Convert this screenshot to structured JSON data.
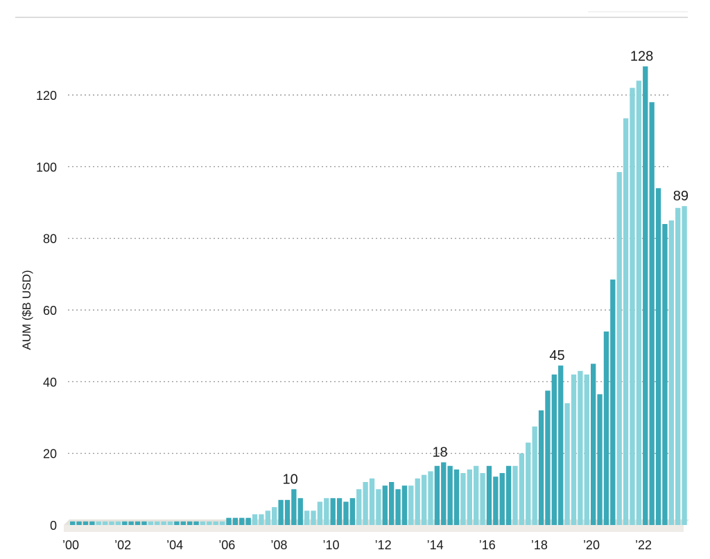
{
  "chart_data": {
    "type": "bar",
    "ylabel": "AUM ($B USD)",
    "ylim": [
      0,
      130
    ],
    "yticks": [
      0,
      20,
      40,
      60,
      80,
      100,
      120
    ],
    "grid": "horizontal dotted",
    "xlim": [
      2000,
      2023.25
    ],
    "xticks": [
      {
        "x": 2000,
        "label": "’00"
      },
      {
        "x": 2002,
        "label": "’02"
      },
      {
        "x": 2004,
        "label": "’04"
      },
      {
        "x": 2006,
        "label": "’06"
      },
      {
        "x": 2008,
        "label": "’08"
      },
      {
        "x": 2010,
        "label": "’10"
      },
      {
        "x": 2012,
        "label": "’12"
      },
      {
        "x": 2014,
        "label": "’14"
      },
      {
        "x": 2016,
        "label": "’16"
      },
      {
        "x": 2018,
        "label": "’18"
      },
      {
        "x": 2020,
        "label": "’20"
      },
      {
        "x": 2022,
        "label": "’22"
      }
    ],
    "colors": {
      "dark": "#3aa9b8",
      "light": "#8ad4dc",
      "grid": "#888888",
      "floor": "#e6e2dc"
    },
    "series": [
      {
        "x": 2000.0,
        "values": [
          1,
          1,
          1,
          1
        ]
      },
      {
        "x": 2001.0,
        "values": [
          1,
          1,
          1,
          1
        ]
      },
      {
        "x": 2002.0,
        "values": [
          1,
          1,
          1,
          1
        ]
      },
      {
        "x": 2003.0,
        "values": [
          1,
          1,
          1,
          1
        ]
      },
      {
        "x": 2004.0,
        "values": [
          1,
          1,
          1,
          1
        ]
      },
      {
        "x": 2005.0,
        "values": [
          1,
          1,
          1,
          1
        ]
      },
      {
        "x": 2006.0,
        "values": [
          2,
          2,
          2,
          2
        ]
      },
      {
        "x": 2007.0,
        "values": [
          3,
          3,
          4,
          5
        ]
      },
      {
        "x": 2008.0,
        "values": [
          7,
          7,
          10,
          7.5
        ]
      },
      {
        "x": 2009.0,
        "values": [
          4,
          4,
          6.5,
          7.5
        ]
      },
      {
        "x": 2010.0,
        "values": [
          7.5,
          7.5,
          6.5,
          7.5
        ]
      },
      {
        "x": 2011.0,
        "values": [
          10,
          12,
          13,
          10
        ]
      },
      {
        "x": 2012.0,
        "values": [
          11,
          12,
          10,
          11
        ]
      },
      {
        "x": 2013.0,
        "values": [
          11,
          13,
          14,
          15
        ]
      },
      {
        "x": 2014.0,
        "values": [
          16.5,
          17.5,
          16.5,
          15.5
        ]
      },
      {
        "x": 2015.0,
        "values": [
          14.5,
          15.5,
          16.5,
          14.5
        ]
      },
      {
        "x": 2016.0,
        "values": [
          16.5,
          13.5,
          14.5,
          16.5
        ]
      },
      {
        "x": 2017.0,
        "values": [
          16.5,
          20,
          23,
          27.5
        ]
      },
      {
        "x": 2018.0,
        "values": [
          32,
          37.5,
          42,
          44.5
        ]
      },
      {
        "x": 2019.0,
        "values": [
          34,
          42,
          43,
          42
        ]
      },
      {
        "x": 2020.0,
        "values": [
          45,
          36.5,
          54,
          68.5
        ]
      },
      {
        "x": 2021.0,
        "values": [
          98.5,
          113.5,
          122,
          124
        ]
      },
      {
        "x": 2022.0,
        "values": [
          128,
          118,
          94,
          84
        ]
      },
      {
        "x": 2023.0,
        "values": [
          85,
          88.5,
          89
        ]
      }
    ],
    "annotations": [
      {
        "x": 2008.5,
        "value": 10,
        "label": "10"
      },
      {
        "x": 2014.25,
        "value": 17.5,
        "label": "18"
      },
      {
        "x": 2018.75,
        "value": 44.5,
        "label": "45"
      },
      {
        "x": 2022.0,
        "value": 128,
        "label": "128"
      },
      {
        "x": 2023.5,
        "value": 89,
        "label": "89"
      }
    ]
  }
}
